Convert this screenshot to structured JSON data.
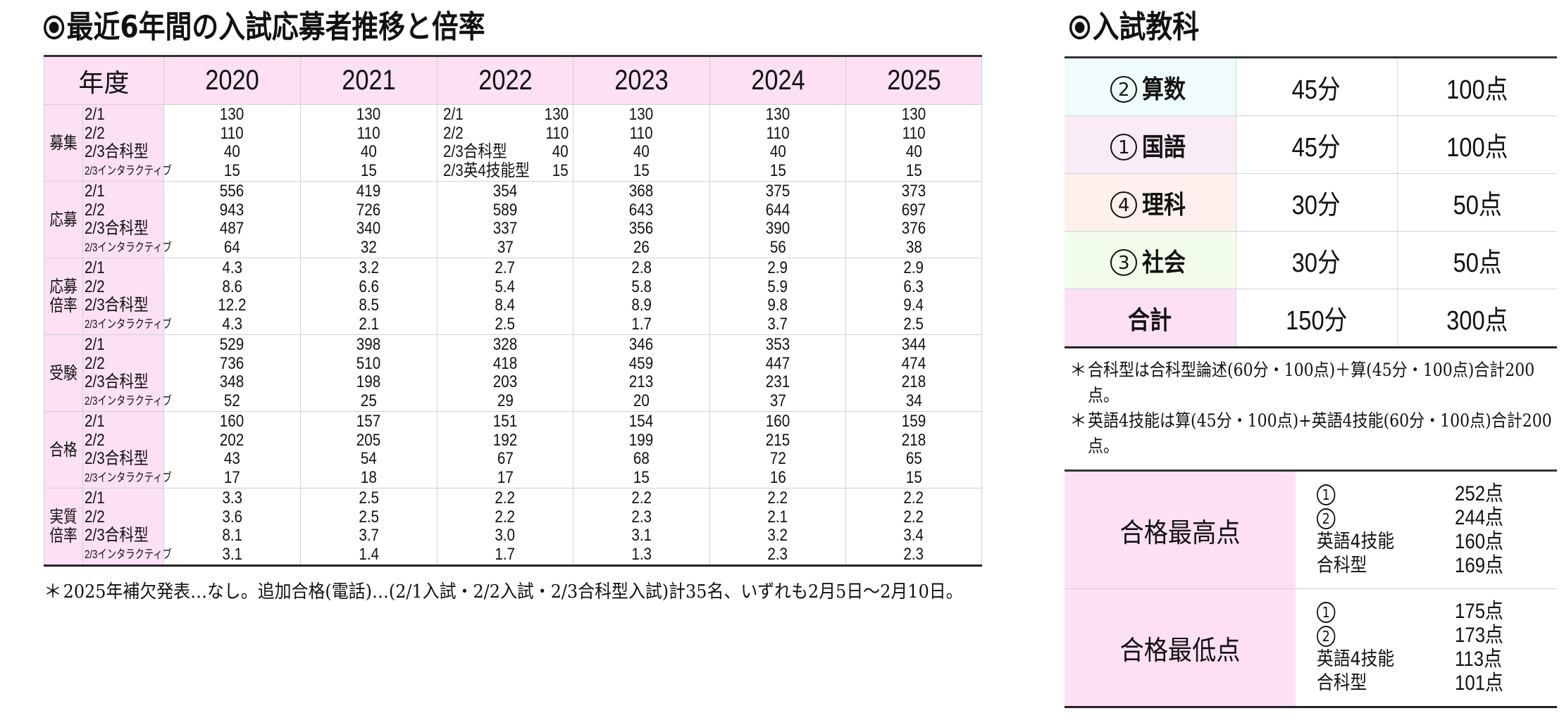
{
  "left_section": {
    "title": "最近6年間の入試応募者推移と倍率",
    "header": {
      "year_label": "年度",
      "years": [
        "2020",
        "2021",
        "2022",
        "2023",
        "2024",
        "2025"
      ]
    },
    "sub_labels": [
      "2/1",
      "2/2",
      "2/3合科型",
      "2/3インタラクティブ"
    ],
    "groups": [
      {
        "category": "募集",
        "values": [
          [
            "130",
            "110",
            "40",
            "15"
          ],
          [
            "130",
            "110",
            "40",
            "15"
          ],
          [
            "130",
            "110",
            "40",
            "15"
          ],
          [
            "130",
            "110",
            "40",
            "15"
          ],
          [
            "130",
            "110",
            "40",
            "15"
          ],
          [
            "130",
            "110",
            "40",
            "15"
          ]
        ],
        "year_2022_labels": [
          "2/1",
          "2/2",
          "2/3合科型",
          "2/3英4技能型"
        ]
      },
      {
        "category": "応募",
        "values": [
          [
            "556",
            "943",
            "487",
            "64"
          ],
          [
            "419",
            "726",
            "340",
            "32"
          ],
          [
            "354",
            "589",
            "337",
            "37"
          ],
          [
            "368",
            "643",
            "356",
            "26"
          ],
          [
            "375",
            "644",
            "390",
            "56"
          ],
          [
            "373",
            "697",
            "376",
            "38"
          ]
        ]
      },
      {
        "category": "応募倍率",
        "category_lines": [
          "応募",
          "倍率"
        ],
        "values": [
          [
            "4.3",
            "8.6",
            "12.2",
            "4.3"
          ],
          [
            "3.2",
            "6.6",
            "8.5",
            "2.1"
          ],
          [
            "2.7",
            "5.4",
            "8.4",
            "2.5"
          ],
          [
            "2.8",
            "5.8",
            "8.9",
            "1.7"
          ],
          [
            "2.9",
            "5.9",
            "9.8",
            "3.7"
          ],
          [
            "2.9",
            "6.3",
            "9.4",
            "2.5"
          ]
        ]
      },
      {
        "category": "受験",
        "values": [
          [
            "529",
            "736",
            "348",
            "52"
          ],
          [
            "398",
            "510",
            "198",
            "25"
          ],
          [
            "328",
            "418",
            "203",
            "29"
          ],
          [
            "346",
            "459",
            "213",
            "20"
          ],
          [
            "353",
            "447",
            "231",
            "37"
          ],
          [
            "344",
            "474",
            "218",
            "34"
          ]
        ]
      },
      {
        "category": "合格",
        "values": [
          [
            "160",
            "202",
            "43",
            "17"
          ],
          [
            "157",
            "205",
            "54",
            "18"
          ],
          [
            "151",
            "192",
            "67",
            "17"
          ],
          [
            "154",
            "199",
            "68",
            "15"
          ],
          [
            "160",
            "215",
            "72",
            "16"
          ],
          [
            "159",
            "218",
            "65",
            "15"
          ]
        ]
      },
      {
        "category": "実質倍率",
        "category_lines": [
          "実質",
          "倍率"
        ],
        "values": [
          [
            "3.3",
            "3.6",
            "8.1",
            "3.1"
          ],
          [
            "2.5",
            "2.5",
            "3.7",
            "1.4"
          ],
          [
            "2.2",
            "2.2",
            "3.0",
            "1.7"
          ],
          [
            "2.2",
            "2.3",
            "3.1",
            "1.3"
          ],
          [
            "2.2",
            "2.1",
            "3.2",
            "2.3"
          ],
          [
            "2.2",
            "2.2",
            "3.4",
            "2.3"
          ]
        ]
      }
    ],
    "footnote": {
      "mark": "＊",
      "text": "2025年補欠発表…なし。追加合格(電話)…(2/1入試・2/2入試・2/3合科型入試)計35名、いずれも2月5日～2月10日。"
    }
  },
  "right_section": {
    "title": "入試教科",
    "subjects": [
      {
        "num": "2",
        "name": "算数",
        "time": "45分",
        "points": "100点",
        "color": "#effcfb"
      },
      {
        "num": "1",
        "name": "国語",
        "time": "45分",
        "points": "100点",
        "color": "#f9ecf7"
      },
      {
        "num": "4",
        "name": "理科",
        "time": "30分",
        "points": "50点",
        "color": "#fef0ec"
      },
      {
        "num": "3",
        "name": "社会",
        "time": "30分",
        "points": "50点",
        "color": "#f2fcea"
      },
      {
        "num": "",
        "name": "合計",
        "time": "150分",
        "points": "300点",
        "color": "#fde0f4"
      }
    ],
    "notes": [
      {
        "mark": "＊",
        "text": "合科型は合科型論述(60分・100点)＋算(45分・100点)合計200点。"
      },
      {
        "mark": "＊",
        "text": "英語4技能は算(45分・100点)+英語4技能(60分・100点)合計200点。"
      }
    ],
    "scores": [
      {
        "label": "合格最高点",
        "rows": [
          {
            "circle": "1",
            "key": "",
            "value": "252点"
          },
          {
            "circle": "2",
            "key": "",
            "value": "244点"
          },
          {
            "circle": "",
            "key": "英語4技能",
            "value": "160点"
          },
          {
            "circle": "",
            "key": "合科型",
            "value": "169点"
          }
        ]
      },
      {
        "label": "合格最低点",
        "rows": [
          {
            "circle": "1",
            "key": "",
            "value": "175点"
          },
          {
            "circle": "2",
            "key": "",
            "value": "173点"
          },
          {
            "circle": "",
            "key": "英語4技能",
            "value": "113点"
          },
          {
            "circle": "",
            "key": "合科型",
            "value": "101点"
          }
        ]
      }
    ]
  },
  "colors": {
    "header_pink": "#fde0f4",
    "grid_line": "#cfd0dc",
    "rule_dark": "#333333"
  }
}
